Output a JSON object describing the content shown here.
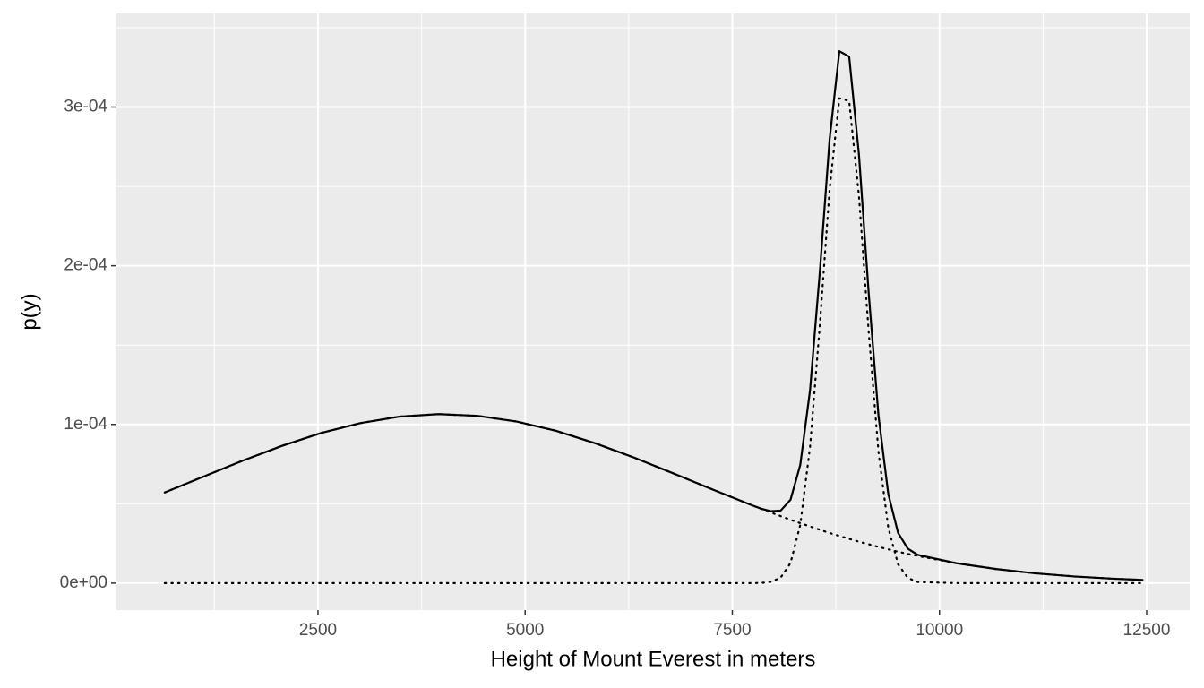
{
  "chart_data": {
    "type": "line",
    "x_label": "Height of Mount Everest in meters",
    "y_label": "p(y)",
    "x": [
      650,
      1122,
      1594,
      2066,
      2538,
      3010,
      3482,
      3954,
      4426,
      4898,
      5370,
      5842,
      6314,
      6786,
      7258,
      7730,
      7848,
      7966,
      8084,
      8202,
      8320,
      8438,
      8556,
      8674,
      8792,
      8910,
      9028,
      9146,
      9264,
      9382,
      9500,
      9618,
      9736,
      10208,
      10680,
      11152,
      11624,
      12096,
      12450
    ],
    "series": [
      {
        "color": "#000000",
        "linestyle": "solid",
        "values": [
          5.71e-05,
          6.72e-05,
          7.72e-05,
          8.65e-05,
          9.46e-05,
          0.0001008,
          0.0001049,
          0.0001065,
          0.0001054,
          0.0001018,
          9.6e-05,
          8.82e-05,
          7.91e-05,
          6.92e-05,
          5.91e-05,
          4.92e-05,
          4.69e-05,
          4.53e-05,
          4.57e-05,
          5.25e-05,
          7.45e-05,
          0.0001216,
          0.0001961,
          0.0002796,
          0.0003352,
          0.0003318,
          0.0002701,
          0.0001826,
          0.0001055,
          5.62e-05,
          3.17e-05,
          2.17e-05,
          1.78e-05,
          1.25e-05,
          8.9e-06,
          6.2e-06,
          4.2e-06,
          2.8e-06,
          2e-06
        ]
      },
      {
        "color": "#000000",
        "linestyle": "dotted",
        "values": [
          5.71e-05,
          6.72e-05,
          7.72e-05,
          8.65e-05,
          9.46e-05,
          0.0001008,
          0.0001049,
          0.0001065,
          0.0001054,
          0.0001018,
          9.6e-05,
          8.82e-05,
          7.91e-05,
          6.92e-05,
          5.91e-05,
          4.92e-05,
          4.68e-05,
          4.45e-05,
          4.22e-05,
          3.99e-05,
          3.78e-05,
          3.57e-05,
          3.36e-05,
          3.16e-05,
          2.97e-05,
          2.79e-05,
          2.61e-05,
          2.45e-05,
          2.28e-05,
          2.13e-05,
          1.98e-05,
          1.84e-05,
          1.71e-05,
          1.25e-05,
          8.9e-06,
          6.2e-06,
          4.2e-06,
          2.8e-06,
          2e-06
        ]
      },
      {
        "color": "#000000",
        "linestyle": "dotted",
        "values": [
          0,
          0,
          0,
          0,
          0,
          0,
          0,
          0,
          0,
          0,
          0,
          0,
          0,
          0,
          0,
          0,
          1e-07,
          8e-07,
          3.5e-06,
          1.26e-05,
          3.67e-05,
          8.59e-05,
          0.0001625,
          0.000248,
          0.0003055,
          0.0003039,
          0.000244,
          0.0001581,
          8.27e-05,
          3.49e-05,
          1.19e-05,
          3.3e-06,
          7e-07,
          0,
          0,
          0,
          0,
          0,
          0
        ]
      }
    ],
    "xlim": [
      68,
      13019
    ],
    "ylim": [
      -1.7e-05,
      0.000359
    ],
    "xticks": [
      2500,
      5000,
      7500,
      10000,
      12500
    ],
    "yticks": [
      {
        "value": 0,
        "label": "0e+00"
      },
      {
        "value": 0.0001,
        "label": "1e-04"
      },
      {
        "value": 0.0002,
        "label": "2e-04"
      },
      {
        "value": 0.0003,
        "label": "3e-04"
      }
    ],
    "xminor": [
      1250,
      3750,
      6250,
      8750,
      11250
    ],
    "yminor": [
      5e-05,
      0.00015,
      0.00025,
      0.00035
    ],
    "grid": true,
    "panel_color": "#ebebeb"
  }
}
